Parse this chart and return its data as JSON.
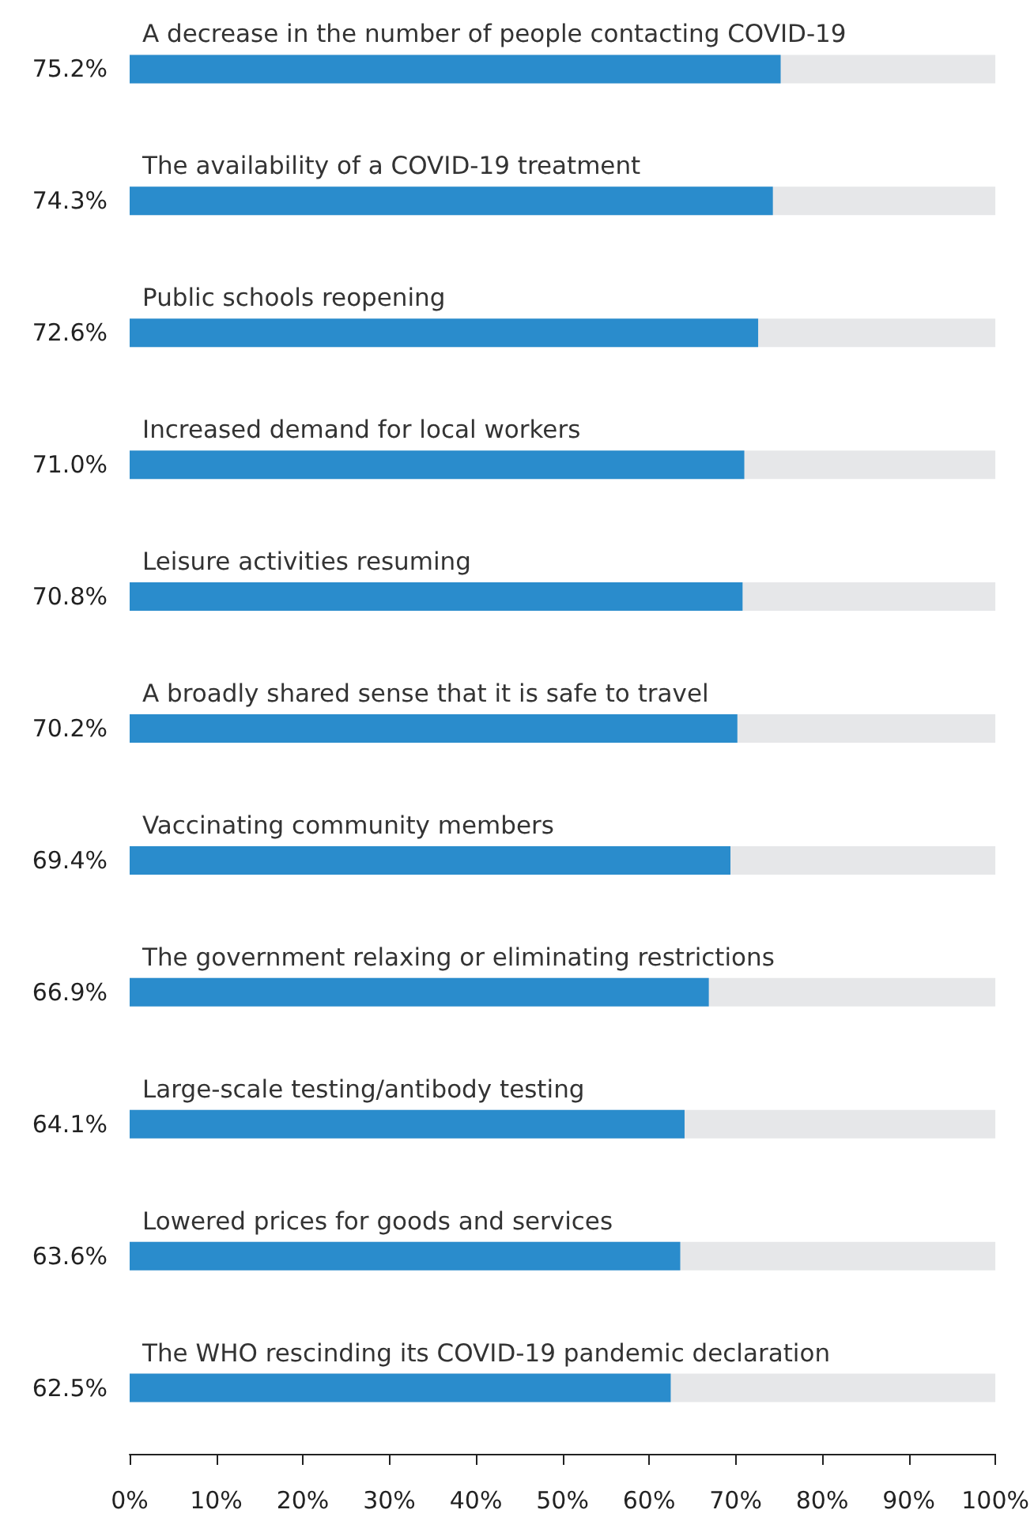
{
  "chart_data": {
    "type": "bar",
    "orientation": "horizontal",
    "categories": [
      "A decrease in the number of people contacting COVID-19",
      "The availability of a COVID-19 treatment",
      "Public schools reopening",
      "Increased demand for local workers",
      "Leisure activities resuming",
      "A broadly shared sense that it is safe to travel",
      "Vaccinating community members",
      "The government relaxing or eliminating restrictions",
      "Large-scale testing/antibody testing",
      "Lowered prices for goods and services",
      "The WHO rescinding its COVID-19 pandemic declaration"
    ],
    "values": [
      75.2,
      74.3,
      72.6,
      71.0,
      70.8,
      70.2,
      69.4,
      66.9,
      64.1,
      63.6,
      62.5
    ],
    "value_labels": [
      "75.2%",
      "74.3%",
      "72.6%",
      "71.0%",
      "70.8%",
      "70.2%",
      "69.4%",
      "66.9%",
      "64.1%",
      "63.6%",
      "62.5%"
    ],
    "color": "#2a8ccc",
    "xlim": [
      0,
      100
    ],
    "xticks": [
      {
        "value": 0,
        "label": "0%"
      },
      {
        "value": 10,
        "label": "10%"
      },
      {
        "value": 20,
        "label": "20%"
      },
      {
        "value": 30,
        "label": "30%"
      },
      {
        "value": 40,
        "label": "40%"
      },
      {
        "value": 50,
        "label": "50%"
      },
      {
        "value": 60,
        "label": "60%"
      },
      {
        "value": 70,
        "label": "70%"
      },
      {
        "value": 80,
        "label": "80%"
      },
      {
        "value": 90,
        "label": "90%"
      },
      {
        "value": 100,
        "label": "100%"
      }
    ],
    "grid": false
  }
}
